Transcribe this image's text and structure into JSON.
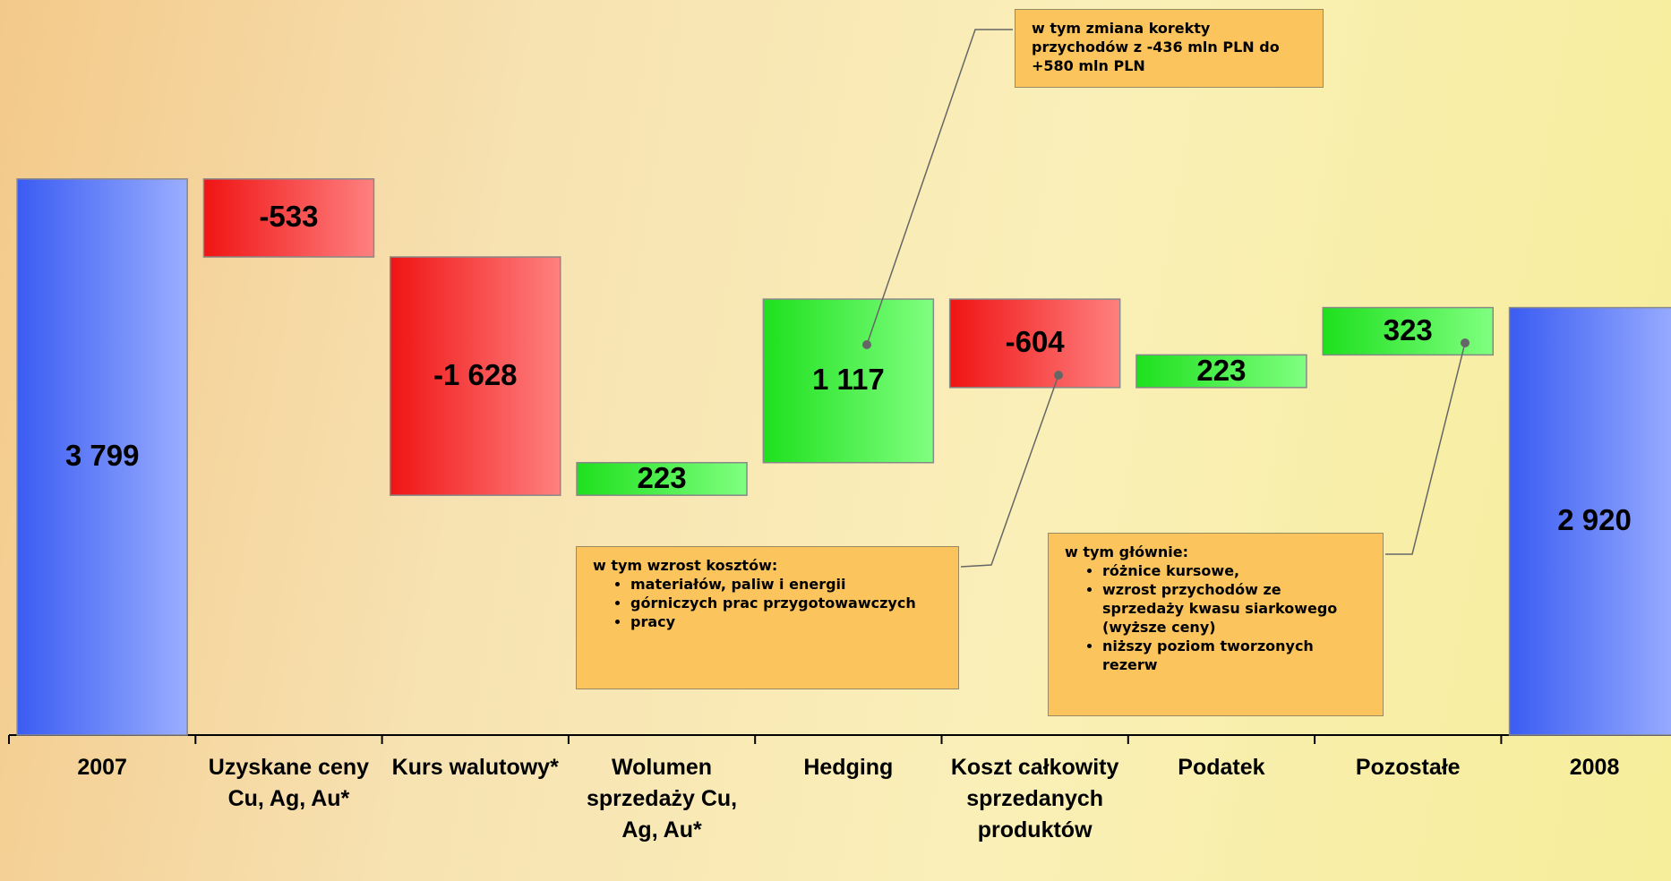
{
  "chart_data": {
    "type": "waterfall",
    "categories": [
      "2007",
      "Uzyskane ceny Cu, Ag, Au*",
      "Kurs walutowy*",
      "Wolumen sprzedaży Cu, Ag, Au*",
      "Hedging",
      "Koszt całkowity sprzedanych produktów",
      "Podatek",
      "Pozostałe",
      "2008"
    ],
    "values": [
      3799,
      -533,
      -1628,
      223,
      1117,
      -604,
      223,
      323,
      2920
    ],
    "value_labels": [
      "3 799",
      "-533",
      "-1 628",
      "223",
      "1 117",
      "-604",
      "223",
      "323",
      "2 920"
    ],
    "colors": {
      "total": [
        "#3a5cf2",
        "#9aaeff"
      ],
      "increase": [
        "#1ee01e",
        "#80ff80"
      ],
      "decrease": [
        "#f01414",
        "#ff8080"
      ]
    },
    "annotations": [
      {
        "text": "w tym zmiana korekty przychodów z -436 mln PLN do +580 mln PLN",
        "items": []
      },
      {
        "text": "w tym wzrost kosztów:",
        "items": [
          "materiałów, paliw i energii",
          "górniczych prac przygotowawczych",
          "pracy"
        ]
      },
      {
        "text": "w tym głównie:",
        "items": [
          "różnice kursowe,",
          "wzrost przychodów ze sprzedaży kwasu siarkowego (wyższe ceny)",
          "niższy poziom tworzonych rezerw"
        ]
      }
    ]
  }
}
